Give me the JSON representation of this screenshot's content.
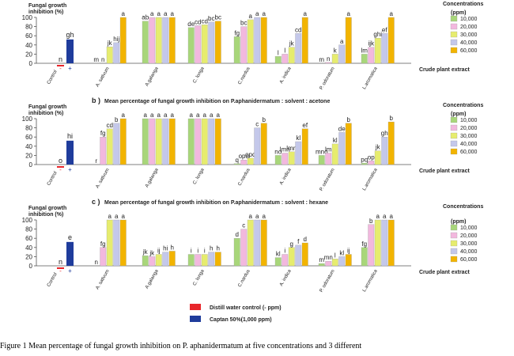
{
  "panels": [
    {
      "letter": "",
      "title": "",
      "ylabel": "Fungal growth\ninhibition (%)"
    },
    {
      "letter": "b )",
      "title": "Mean percentage of fungal growth inhibition on P.aphanidermatum : solvent : acetone",
      "ylabel": "Fungal growth\ninhibition (%)"
    },
    {
      "letter": "c )",
      "title": "Mean percentage of fungal growth inhibition on P.aphanidermatum : solvent : hexane",
      "ylabel": "Fungal growth\ninhibition (%)"
    }
  ],
  "legend": {
    "title": "Concentrations",
    "unit": "(ppm)",
    "entries": [
      "10,000",
      "20,000",
      "30,000",
      "40,000",
      "60,000"
    ]
  },
  "xaxis_title": "Crude plant extract",
  "control_legend": [
    {
      "label": "Distill water control (- ppm)",
      "color": "#e8262b"
    },
    {
      "label": "Captan 50%(1,000 ppm)",
      "color": "#1f3c9c"
    }
  ],
  "caption": "Figure 1  Mean percentage of fungal growth inhibition on  P. aphanidermatum  at five concentrations and 3 different",
  "colors": {
    "series": [
      "#a8d67a",
      "#f2b8de",
      "#e6ec6e",
      "#c4c8ea",
      "#f2b400"
    ],
    "neg_control": "#e8262b",
    "pos_control": "#1f3c9c"
  },
  "chart_data": [
    {
      "type": "bar",
      "ylim": [
        0,
        100
      ],
      "yticks": [
        0,
        20,
        40,
        60,
        80,
        100
      ],
      "controls": {
        "categories": [
          "-",
          "+"
        ],
        "xlabel": "Control",
        "values": [
          0,
          52
        ],
        "letters": [
          "n",
          "gh"
        ]
      },
      "categories": [
        "A. sativum",
        "A.galanga",
        "C. longa",
        "C.nardus",
        "A. indica",
        "P. odoratum",
        "L.aromatica"
      ],
      "series": [
        {
          "name": "10,000",
          "values": [
            0,
            92,
            78,
            58,
            15,
            0,
            20
          ]
        },
        {
          "name": "20,000",
          "values": [
            0,
            100,
            82,
            80,
            20,
            2,
            35
          ]
        },
        {
          "name": "30,000",
          "values": [
            36,
            100,
            84,
            95,
            35,
            20,
            55
          ]
        },
        {
          "name": "40,000",
          "values": [
            45,
            100,
            90,
            100,
            65,
            40,
            65
          ]
        },
        {
          "name": "60,000",
          "values": [
            100,
            100,
            92,
            100,
            100,
            100,
            100
          ]
        }
      ],
      "letters": [
        [
          "m",
          "n",
          "jk",
          "hij",
          "a"
        ],
        [
          "ab",
          "a",
          "a",
          "a",
          "a"
        ],
        [
          "de",
          "cd",
          "cd",
          "bc",
          "bc"
        ],
        [
          "fg",
          "bc",
          "a",
          "a",
          "a"
        ],
        [
          "l",
          "l",
          "jk",
          "cd",
          "a"
        ],
        [
          "m",
          "n",
          "k",
          "a",
          "a"
        ],
        [
          "lm",
          "ijk",
          "ghi",
          "ef",
          "a"
        ]
      ]
    },
    {
      "type": "bar",
      "ylim": [
        0,
        100
      ],
      "yticks": [
        0,
        20,
        40,
        60,
        80,
        100
      ],
      "controls": {
        "categories": [
          "-",
          "+"
        ],
        "xlabel": "Control",
        "values": [
          0,
          52
        ],
        "letters": [
          "o",
          "hi"
        ]
      },
      "categories": [
        "A. sativum",
        "A.galanga",
        "C. longa",
        "C.nardus",
        "A. indica",
        "P. odoratum",
        "L.aromatica"
      ],
      "series": [
        {
          "name": "10,000",
          "values": [
            0,
            100,
            100,
            2,
            20,
            20,
            3
          ]
        },
        {
          "name": "20,000",
          "values": [
            60,
            100,
            100,
            10,
            25,
            25,
            8
          ]
        },
        {
          "name": "30,000",
          "values": [
            78,
            100,
            100,
            14,
            28,
            45,
            30
          ]
        },
        {
          "name": "40,000",
          "values": [
            90,
            100,
            100,
            80,
            50,
            70,
            60
          ]
        },
        {
          "name": "60,000",
          "values": [
            100,
            100,
            100,
            90,
            78,
            90,
            93
          ]
        }
      ],
      "letters": [
        [
          "r",
          "fg",
          "cd",
          "b",
          "a"
        ],
        [
          "a",
          "a",
          "a",
          "a",
          "a"
        ],
        [
          "a",
          "a",
          "a",
          "a",
          "a"
        ],
        [
          "q",
          "opq",
          "opq",
          "c",
          "b"
        ],
        [
          "no",
          "lmn",
          "lmn",
          "kl",
          "ef"
        ],
        [
          "mno",
          "lm",
          "kl",
          "de",
          "b"
        ],
        [
          "pq",
          "op",
          "jk",
          "gh",
          "b"
        ]
      ]
    },
    {
      "type": "bar",
      "ylim": [
        0,
        100
      ],
      "yticks": [
        0,
        20,
        40,
        60,
        80,
        100
      ],
      "controls": {
        "categories": [
          "-",
          "+"
        ],
        "xlabel": "Control",
        "values": [
          0,
          52
        ],
        "letters": [
          "n",
          "e"
        ]
      },
      "categories": [
        "A. sativum",
        "A.galanga",
        "C. longa",
        "C.nardus",
        "A. indica",
        "P. odoratum",
        "L.aromatica"
      ],
      "series": [
        {
          "name": "10,000",
          "values": [
            0,
            22,
            25,
            60,
            18,
            5,
            40
          ]
        },
        {
          "name": "20,000",
          "values": [
            40,
            20,
            25,
            80,
            25,
            10,
            90
          ]
        },
        {
          "name": "30,000",
          "values": [
            100,
            25,
            25,
            100,
            40,
            15,
            100
          ]
        },
        {
          "name": "40,000",
          "values": [
            100,
            30,
            30,
            100,
            45,
            20,
            100
          ]
        },
        {
          "name": "60,000",
          "values": [
            100,
            32,
            30,
            100,
            50,
            25,
            100
          ]
        }
      ],
      "letters": [
        [
          "n",
          "fg",
          "a",
          "a",
          "a"
        ],
        [
          "jk",
          "jk",
          "ij",
          "hi",
          "h"
        ],
        [
          "i",
          "i",
          "i",
          "h",
          "h"
        ],
        [
          "d",
          "c",
          "a",
          "a",
          "a"
        ],
        [
          "kl",
          "i",
          "g",
          "f",
          "d"
        ],
        [
          "m",
          "mn",
          "l",
          "kl",
          "ij"
        ],
        [
          "fg",
          "b",
          "a",
          "a",
          "a"
        ]
      ]
    }
  ]
}
